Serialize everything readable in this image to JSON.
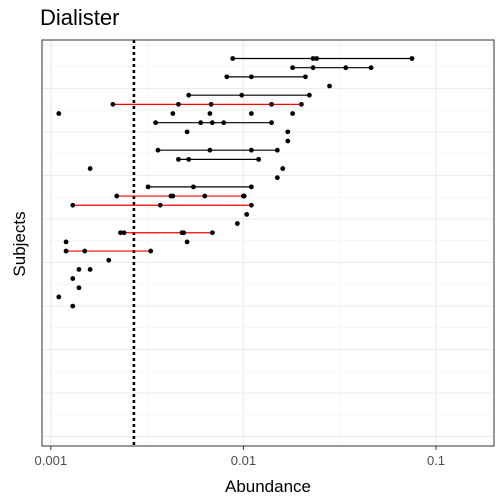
{
  "chart_data": {
    "type": "scatter",
    "title": "Dialister",
    "xlabel": "Abundance",
    "ylabel": "Subjects",
    "x_scale": "log10",
    "xlim": [
      0.0009,
      0.2
    ],
    "x_ticks": [
      0.001,
      0.01,
      0.1
    ],
    "x_tick_labels": [
      "0.001",
      "0.01",
      "0.1"
    ],
    "grid": true,
    "threshold_line": {
      "x": 0.0027,
      "style": "dotted"
    },
    "rows": [
      {
        "points": [
          0.0088,
          0.023,
          0.024,
          0.075
        ],
        "range_color": "black"
      },
      {
        "points": [
          0.018,
          0.023,
          0.034,
          0.046
        ],
        "range_color": "black"
      },
      {
        "points": [
          0.0082,
          0.011,
          0.021
        ],
        "range_color": "black"
      },
      {
        "points": [
          0.028
        ],
        "range_color": "none"
      },
      {
        "points": [
          0.0052,
          0.0098,
          0.022
        ],
        "range_color": "black"
      },
      {
        "points": [
          0.0021,
          0.0046,
          0.0068,
          0.014,
          0.02
        ],
        "range_color": "red"
      },
      {
        "points": [
          0.0011,
          0.0043,
          0.0067,
          0.011,
          0.018
        ],
        "range_color": "none"
      },
      {
        "points": [
          0.0035,
          0.006,
          0.0069,
          0.0079,
          0.014
        ],
        "range_color": "black"
      },
      {
        "points": [
          0.0051,
          0.017
        ],
        "range_color": "none"
      },
      {
        "points": [
          0.017
        ],
        "range_color": "none"
      },
      {
        "points": [
          0.0036,
          0.0067,
          0.011,
          0.015
        ],
        "range_color": "black"
      },
      {
        "points": [
          0.0046,
          0.0052,
          0.012
        ],
        "range_color": "black"
      },
      {
        "points": [
          0.0016,
          0.016
        ],
        "range_color": "none"
      },
      {
        "points": [
          0.015
        ],
        "range_color": "none"
      },
      {
        "points": [
          0.0032,
          0.0055,
          0.011
        ],
        "range_color": "black"
      },
      {
        "points": [
          0.0022,
          0.0042,
          0.0043,
          0.0063,
          0.01,
          0.0101
        ],
        "range_color": "red"
      },
      {
        "points": [
          0.0013,
          0.0037,
          0.011
        ],
        "range_color": "red"
      },
      {
        "points": [
          0.0104
        ],
        "range_color": "none"
      },
      {
        "points": [
          0.0093
        ],
        "range_color": "none"
      },
      {
        "points": [
          0.0023,
          0.0024,
          0.0048,
          0.0049,
          0.0069
        ],
        "range_color": "red"
      },
      {
        "points": [
          0.0012,
          0.0051
        ],
        "range_color": "none"
      },
      {
        "points": [
          0.0012,
          0.0015,
          0.0033
        ],
        "range_color": "red"
      },
      {
        "points": [
          0.002
        ],
        "range_color": "none"
      },
      {
        "points": [
          0.0014,
          0.0016
        ],
        "range_color": "none"
      },
      {
        "points": [
          0.0013
        ],
        "range_color": "none"
      },
      {
        "points": [
          0.0014
        ],
        "range_color": "none"
      },
      {
        "points": [
          0.0011
        ],
        "range_color": "none"
      },
      {
        "points": [
          0.0013
        ],
        "range_color": "none"
      }
    ]
  }
}
